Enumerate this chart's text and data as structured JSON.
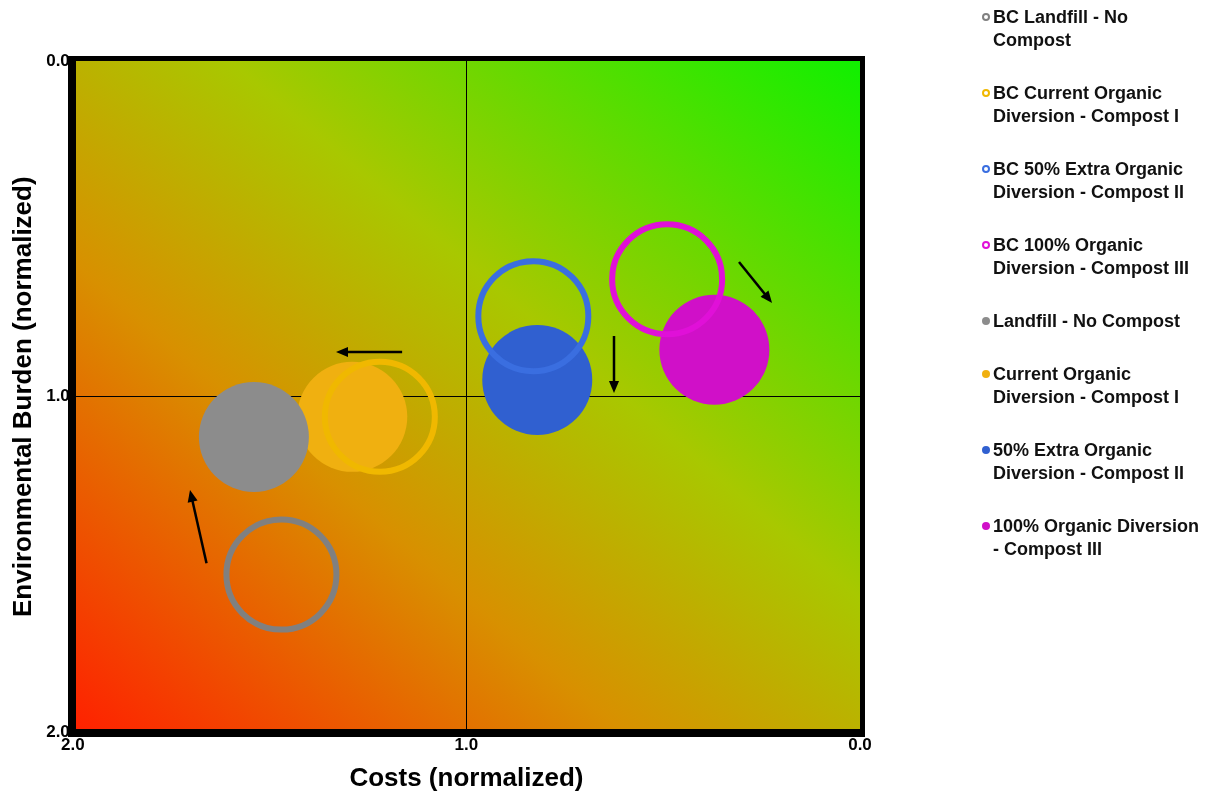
{
  "chart_data": {
    "type": "bubble",
    "xlabel": "Costs (normalized)",
    "ylabel": "Environmental Burden (normalized)",
    "xlim": [
      2.0,
      0.0
    ],
    "ylim": [
      2.0,
      0.0
    ],
    "xticks": [
      {
        "value": 2,
        "label": "2.0"
      },
      {
        "value": 1,
        "label": "1.0"
      },
      {
        "value": 0,
        "label": "0.0"
      }
    ],
    "yticks": [
      {
        "value": 2,
        "label": "2.0"
      },
      {
        "value": 1,
        "label": "1.0"
      },
      {
        "value": 0,
        "label": "0.0"
      }
    ],
    "grid": true,
    "legend": "right",
    "series": [
      {
        "name": "BC Landfill - No Compost",
        "color": "#808080",
        "x": [
          1.47
        ],
        "values": [
          1.53
        ],
        "sizes": [
          1
        ]
      },
      {
        "name": "BC Current Organic Diversion - Compost I",
        "color": "#f0b800",
        "x": [
          1.22
        ],
        "values": [
          1.06
        ],
        "sizes": [
          1
        ]
      },
      {
        "name": "BC 50% Extra Organic Diversion - Compost II",
        "color": "#3a6ee0",
        "x": [
          0.83
        ],
        "values": [
          0.76
        ],
        "sizes": [
          1
        ]
      },
      {
        "name": "BC 100% Organic Diversion - Compost III",
        "color": "#e010d8",
        "x": [
          0.49
        ],
        "values": [
          0.65
        ],
        "sizes": [
          1
        ]
      },
      {
        "name": "Landfill - No Compost",
        "color": "#8c8c8c",
        "x": [
          1.54
        ],
        "values": [
          1.12
        ],
        "sizes": [
          1
        ]
      },
      {
        "name": "Current Organic Diversion - Compost I",
        "color": "#f0b010",
        "x": [
          1.29
        ],
        "values": [
          1.06
        ],
        "sizes": [
          1
        ]
      },
      {
        "name": "50% Extra Organic Diversion - Compost II",
        "color": "#3060d0",
        "x": [
          0.82
        ],
        "values": [
          0.95
        ],
        "sizes": [
          1
        ]
      },
      {
        "name": "100% Organic Diversion - Compost III",
        "color": "#d010c8",
        "x": [
          0.37
        ],
        "values": [
          0.86
        ],
        "sizes": [
          1
        ]
      }
    ]
  }
}
